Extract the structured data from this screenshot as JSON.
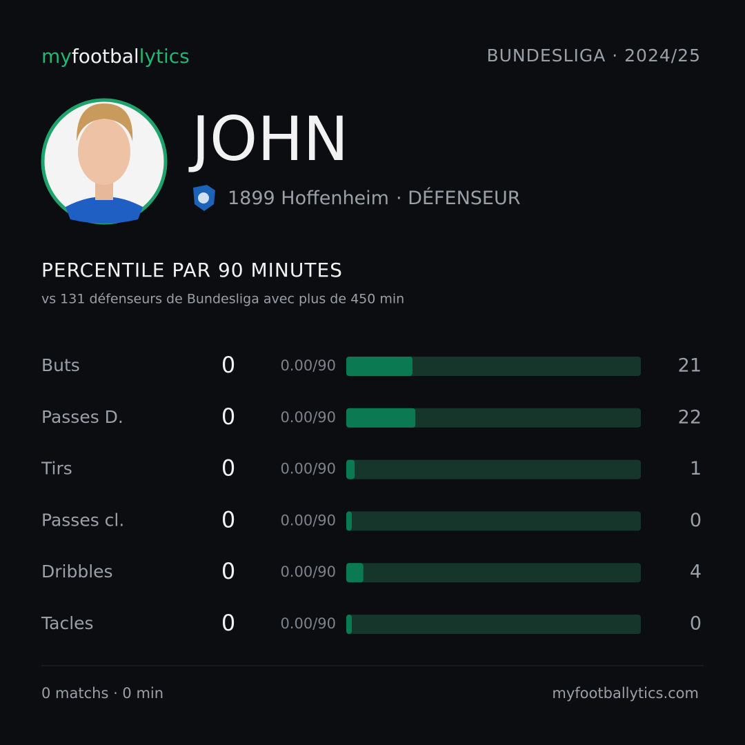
{
  "header": {
    "brand": [
      "my",
      "footbal",
      "lytics"
    ],
    "league": "BUNDESLIGA · 2024/25"
  },
  "player": {
    "name": "JOHN",
    "club": "1899 Hoffenheim",
    "position": "· DÉFENSEUR"
  },
  "section": {
    "title": "PERCENTILE PAR 90 MINUTES",
    "subtitle": "vs 131 défenseurs de Bundesliga avec plus de 450 min"
  },
  "rows": [
    {
      "label": "Buts",
      "value": 0,
      "per90": "0.00/90",
      "percentile": 21
    },
    {
      "label": "Passes D.",
      "value": 0,
      "per90": "0.00/90",
      "percentile": 22
    },
    {
      "label": "Tirs",
      "value": 0,
      "per90": "0.00/90",
      "percentile": 1
    },
    {
      "label": "Passes cl.",
      "value": 0,
      "per90": "0.00/90",
      "percentile": 0
    },
    {
      "label": "Dribbles",
      "value": 0,
      "per90": "0.00/90",
      "percentile": 4
    },
    {
      "label": "Tacles",
      "value": 0,
      "per90": "0.00/90",
      "percentile": 0
    }
  ],
  "footer": {
    "stats": "0 matchs · 0 min",
    "site": "myfootballytics.com"
  }
}
